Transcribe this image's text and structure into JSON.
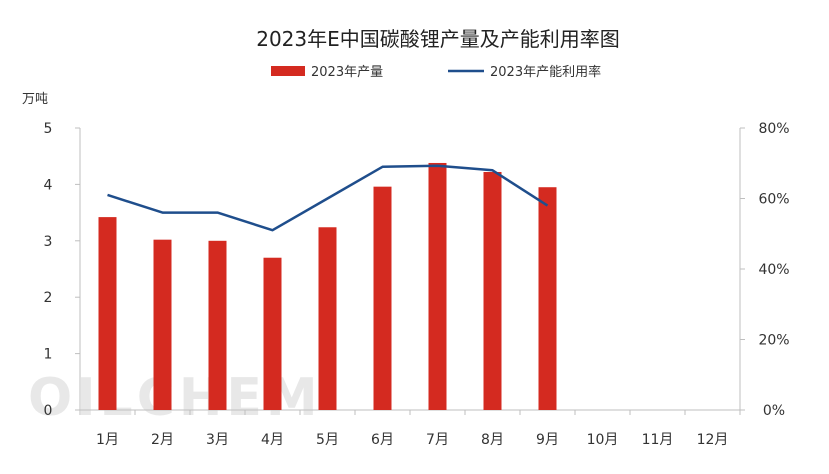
{
  "chart_data": {
    "type": "bar",
    "title": "2023年E中国碳酸锂产量及产能利用率图",
    "ylabel": "万吨",
    "categories": [
      "1月",
      "2月",
      "3月",
      "4月",
      "5月",
      "6月",
      "7月",
      "8月",
      "9月",
      "10月",
      "11月",
      "12月"
    ],
    "ylim": [
      0,
      5
    ],
    "y_ticks": [
      "0",
      "1",
      "2",
      "3",
      "4",
      "5"
    ],
    "y2lim": [
      0,
      80
    ],
    "y2_ticks": [
      "0%",
      "20%",
      "40%",
      "60%",
      "80%"
    ],
    "grid": false,
    "legend_position": "top-center",
    "series": [
      {
        "name": "2023年产量",
        "type": "bar",
        "axis": "left",
        "color": "#d42a20",
        "values": [
          3.42,
          3.02,
          3.0,
          2.7,
          3.24,
          3.96,
          4.38,
          4.22,
          3.95,
          null,
          null,
          null
        ]
      },
      {
        "name": "2023年产能利用率",
        "type": "line",
        "axis": "right",
        "color": "#1f4e8c",
        "values": [
          61,
          56,
          56,
          51,
          60,
          69,
          69.3,
          68,
          58,
          null,
          null,
          null
        ]
      }
    ],
    "watermark": "OILCHEM"
  }
}
